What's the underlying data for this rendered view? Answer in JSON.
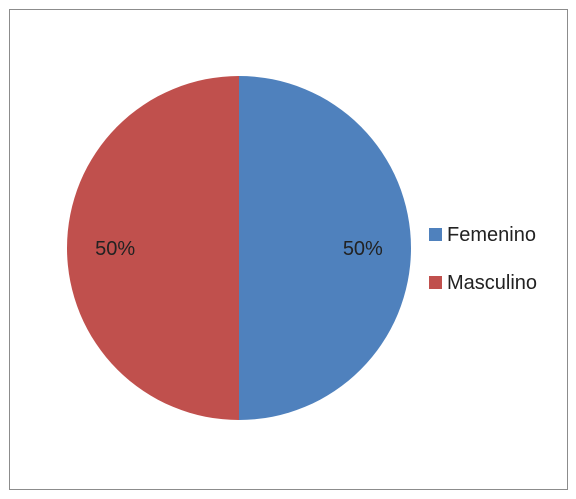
{
  "chart_data": {
    "type": "pie",
    "categories": [
      "Femenino",
      "Masculino"
    ],
    "values": [
      50,
      50
    ],
    "data_labels": [
      "50%",
      "50%"
    ],
    "colors": [
      "#4f81bd",
      "#c0504d"
    ],
    "start_angle_deg": 0,
    "direction": "clockwise",
    "legend_position": "right",
    "title": ""
  }
}
